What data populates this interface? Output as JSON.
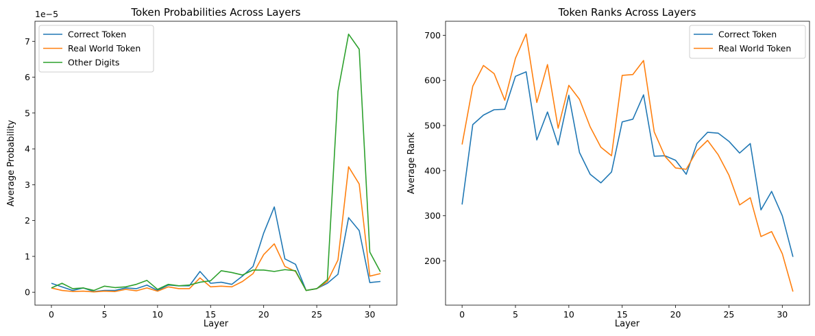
{
  "figure": {
    "colors": {
      "correct": "#1f77b4",
      "real_world": "#ff7f0e",
      "other_digits": "#2ca02c"
    }
  },
  "chart_data": [
    {
      "type": "line",
      "title": "Token Probabilities Across Layers",
      "xlabel": "Layer",
      "ylabel": "Average Probability",
      "y_offset_label": "1e−5",
      "xlim": [
        -1.55,
        32.55
      ],
      "ylim": [
        -0.36,
        7.56
      ],
      "xticks": [
        0,
        5,
        10,
        15,
        20,
        25,
        30
      ],
      "yticks": [
        0,
        1,
        2,
        3,
        4,
        5,
        6,
        7
      ],
      "legend_position": "upper-left",
      "x": [
        0,
        1,
        2,
        3,
        4,
        5,
        6,
        7,
        8,
        9,
        10,
        11,
        12,
        13,
        14,
        15,
        16,
        17,
        18,
        19,
        20,
        21,
        22,
        23,
        24,
        25,
        26,
        27,
        28,
        29,
        30,
        31
      ],
      "series": [
        {
          "name": "Correct Token",
          "color_key": "correct",
          "values": [
            0.25,
            0.15,
            0.05,
            0.12,
            0.02,
            0.05,
            0.05,
            0.12,
            0.1,
            0.2,
            0.05,
            0.2,
            0.18,
            0.18,
            0.58,
            0.25,
            0.28,
            0.22,
            0.45,
            0.72,
            1.65,
            2.38,
            0.93,
            0.78,
            0.05,
            0.1,
            0.25,
            0.5,
            2.08,
            1.72,
            0.27,
            0.3
          ]
        },
        {
          "name": "Real World Token",
          "color_key": "real_world",
          "values": [
            0.12,
            0.05,
            0.02,
            0.03,
            0.01,
            0.03,
            0.02,
            0.08,
            0.04,
            0.12,
            0.03,
            0.15,
            0.1,
            0.1,
            0.4,
            0.15,
            0.17,
            0.15,
            0.3,
            0.52,
            1.05,
            1.35,
            0.72,
            0.58,
            0.05,
            0.1,
            0.3,
            0.9,
            3.5,
            3.02,
            0.45,
            0.52
          ]
        },
        {
          "name": "Other Digits",
          "color_key": "other_digits",
          "values": [
            0.12,
            0.25,
            0.1,
            0.12,
            0.05,
            0.17,
            0.13,
            0.15,
            0.22,
            0.33,
            0.08,
            0.22,
            0.18,
            0.2,
            0.28,
            0.32,
            0.6,
            0.55,
            0.48,
            0.62,
            0.62,
            0.58,
            0.63,
            0.6,
            0.05,
            0.1,
            0.35,
            5.6,
            7.2,
            6.78,
            1.12,
            0.57
          ]
        }
      ]
    },
    {
      "type": "line",
      "title": "Token Ranks Across Layers",
      "xlabel": "Layer",
      "ylabel": "Average Rank",
      "xlim": [
        -1.55,
        32.55
      ],
      "ylim": [
        102,
        731
      ],
      "xticks": [
        0,
        5,
        10,
        15,
        20,
        25,
        30
      ],
      "yticks": [
        200,
        300,
        400,
        500,
        600,
        700
      ],
      "legend_position": "upper-right",
      "x": [
        0,
        1,
        2,
        3,
        4,
        5,
        6,
        7,
        8,
        9,
        10,
        11,
        12,
        13,
        14,
        15,
        16,
        17,
        18,
        19,
        20,
        21,
        22,
        23,
        24,
        25,
        26,
        27,
        28,
        29,
        30,
        31
      ],
      "series": [
        {
          "name": "Correct Token",
          "color_key": "correct",
          "values": [
            325,
            502,
            523,
            535,
            536,
            609,
            619,
            468,
            530,
            457,
            567,
            440,
            392,
            373,
            397,
            508,
            514,
            568,
            432,
            433,
            423,
            392,
            460,
            485,
            483,
            465,
            439,
            460,
            313,
            354,
            300,
            209
          ]
        },
        {
          "name": "Real World Token",
          "color_key": "real_world",
          "values": [
            458,
            587,
            633,
            615,
            556,
            649,
            703,
            551,
            635,
            494,
            589,
            558,
            497,
            452,
            433,
            611,
            613,
            644,
            486,
            432,
            406,
            403,
            444,
            467,
            435,
            390,
            324,
            340,
            254,
            265,
            216,
            132
          ]
        }
      ]
    }
  ]
}
